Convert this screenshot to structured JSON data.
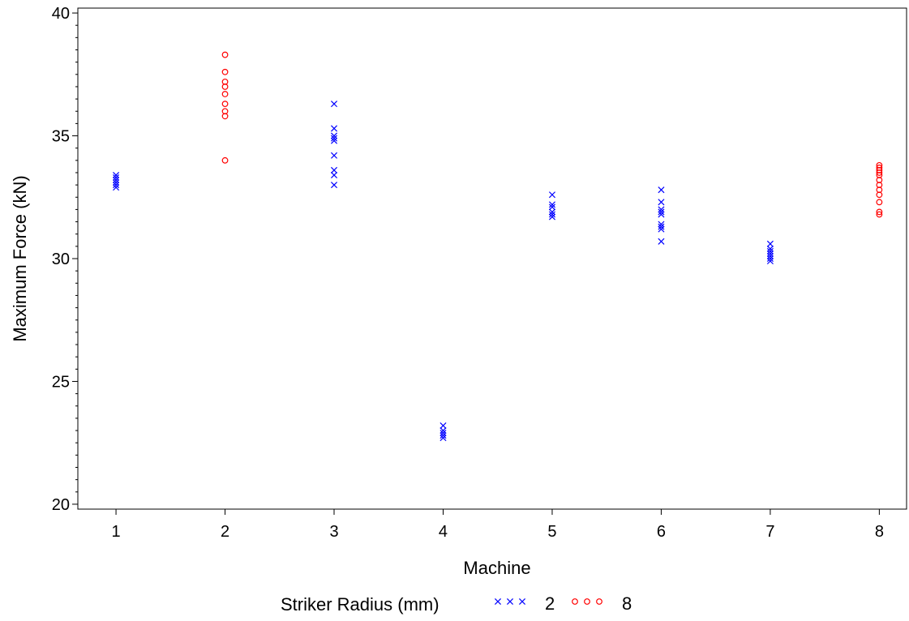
{
  "chart_data": {
    "type": "scatter",
    "xlabel": "Machine",
    "ylabel": "Maximum Force (kN)",
    "x_ticks": [
      "1",
      "2",
      "3",
      "4",
      "5",
      "6",
      "7",
      "8"
    ],
    "y_ticks": [
      "20",
      "25",
      "30",
      "35",
      "40"
    ],
    "xlim": [
      0.65,
      8.25
    ],
    "ylim": [
      19.8,
      40.2
    ],
    "legend": {
      "title": "Striker Radius (mm)",
      "placement": "bottom-center"
    },
    "series": [
      {
        "name": "2",
        "marker": "x",
        "color": "#0000ff",
        "points": [
          {
            "x": 1,
            "y": 32.9
          },
          {
            "x": 1,
            "y": 33.0
          },
          {
            "x": 1,
            "y": 33.1
          },
          {
            "x": 1,
            "y": 33.2
          },
          {
            "x": 1,
            "y": 33.3
          },
          {
            "x": 1,
            "y": 33.4
          },
          {
            "x": 3,
            "y": 33.0
          },
          {
            "x": 3,
            "y": 33.4
          },
          {
            "x": 3,
            "y": 33.6
          },
          {
            "x": 3,
            "y": 34.2
          },
          {
            "x": 3,
            "y": 34.8
          },
          {
            "x": 3,
            "y": 34.9
          },
          {
            "x": 3,
            "y": 35.0
          },
          {
            "x": 3,
            "y": 35.3
          },
          {
            "x": 3,
            "y": 36.3
          },
          {
            "x": 4,
            "y": 22.7
          },
          {
            "x": 4,
            "y": 22.8
          },
          {
            "x": 4,
            "y": 22.9
          },
          {
            "x": 4,
            "y": 23.0
          },
          {
            "x": 4,
            "y": 23.2
          },
          {
            "x": 5,
            "y": 31.7
          },
          {
            "x": 5,
            "y": 31.8
          },
          {
            "x": 5,
            "y": 31.9
          },
          {
            "x": 5,
            "y": 32.1
          },
          {
            "x": 5,
            "y": 32.2
          },
          {
            "x": 5,
            "y": 32.6
          },
          {
            "x": 6,
            "y": 30.7
          },
          {
            "x": 6,
            "y": 31.2
          },
          {
            "x": 6,
            "y": 31.3
          },
          {
            "x": 6,
            "y": 31.4
          },
          {
            "x": 6,
            "y": 31.8
          },
          {
            "x": 6,
            "y": 31.9
          },
          {
            "x": 6,
            "y": 32.0
          },
          {
            "x": 6,
            "y": 32.3
          },
          {
            "x": 6,
            "y": 32.8
          },
          {
            "x": 7,
            "y": 29.9
          },
          {
            "x": 7,
            "y": 30.0
          },
          {
            "x": 7,
            "y": 30.1
          },
          {
            "x": 7,
            "y": 30.2
          },
          {
            "x": 7,
            "y": 30.3
          },
          {
            "x": 7,
            "y": 30.4
          },
          {
            "x": 7,
            "y": 30.6
          }
        ]
      },
      {
        "name": "8",
        "marker": "o",
        "color": "#ff0000",
        "points": [
          {
            "x": 2,
            "y": 34.0
          },
          {
            "x": 2,
            "y": 35.8
          },
          {
            "x": 2,
            "y": 36.0
          },
          {
            "x": 2,
            "y": 36.3
          },
          {
            "x": 2,
            "y": 36.7
          },
          {
            "x": 2,
            "y": 37.0
          },
          {
            "x": 2,
            "y": 37.2
          },
          {
            "x": 2,
            "y": 37.6
          },
          {
            "x": 2,
            "y": 38.3
          },
          {
            "x": 8,
            "y": 31.8
          },
          {
            "x": 8,
            "y": 31.9
          },
          {
            "x": 8,
            "y": 32.3
          },
          {
            "x": 8,
            "y": 32.6
          },
          {
            "x": 8,
            "y": 32.8
          },
          {
            "x": 8,
            "y": 33.0
          },
          {
            "x": 8,
            "y": 33.2
          },
          {
            "x": 8,
            "y": 33.4
          },
          {
            "x": 8,
            "y": 33.5
          },
          {
            "x": 8,
            "y": 33.6
          },
          {
            "x": 8,
            "y": 33.7
          },
          {
            "x": 8,
            "y": 33.8
          }
        ]
      }
    ]
  }
}
